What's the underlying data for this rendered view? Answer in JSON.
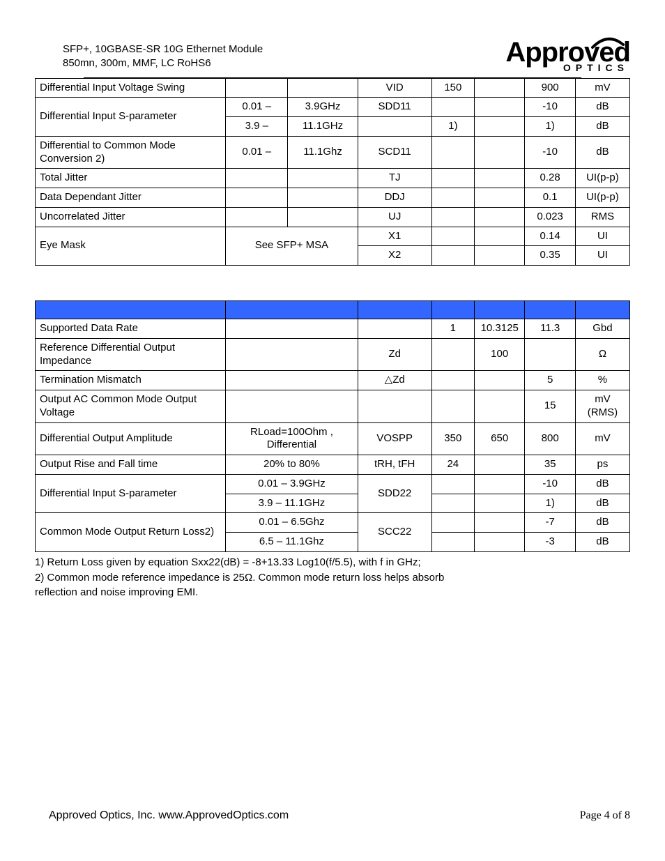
{
  "header": {
    "line1": "SFP+, 10GBASE-SR 10G Ethernet Module",
    "line2": "850mn, 300m, MMF, LC RoHS6"
  },
  "logo": {
    "top": "Approved",
    "bottom": "OPTICS"
  },
  "table1": [
    {
      "param": "Differential Input Voltage Swing",
      "rowspan_param": 1,
      "cond1": "",
      "cond2": "",
      "sym": "VID",
      "min": "150",
      "typ": "",
      "max": "900",
      "unit": "mV"
    },
    {
      "param": "Differential Input S-parameter",
      "rowspan_param": 2,
      "cond1": "0.01 –",
      "cond2": "3.9GHz",
      "sym": "SDD11",
      "min": "",
      "typ": "",
      "max": "-10",
      "unit": "dB"
    },
    {
      "param": null,
      "cond1": "3.9 –",
      "cond2": "11.1GHz",
      "sym": "",
      "min": "1)",
      "typ": "",
      "max": "1)",
      "unit": "dB"
    },
    {
      "param": "Differential to Common Mode Conversion 2)",
      "rowspan_param": 1,
      "cond1": "0.01 –",
      "cond2": "11.1Ghz",
      "sym": "SCD11",
      "min": "",
      "typ": "",
      "max": "-10",
      "unit": "dB"
    },
    {
      "param": "Total Jitter",
      "rowspan_param": 1,
      "cond1": "",
      "cond2": "",
      "sym": "TJ",
      "min": "",
      "typ": "",
      "max": "0.28",
      "unit": "UI(p-p)"
    },
    {
      "param": "Data Dependant Jitter",
      "rowspan_param": 1,
      "cond1": "",
      "cond2": "",
      "sym": "DDJ",
      "min": "",
      "typ": "",
      "max": "0.1",
      "unit": "UI(p-p)"
    },
    {
      "param": "Uncorrelated Jitter",
      "rowspan_param": 1,
      "cond1": "",
      "cond2": "",
      "sym": "UJ",
      "min": "",
      "typ": "",
      "max": "0.023",
      "unit": "RMS"
    },
    {
      "param": "Eye Mask",
      "rowspan_param": 2,
      "cond_merged": "See SFP+ MSA",
      "cond_merged_rowspan": 2,
      "sym": "X1",
      "min": "",
      "typ": "",
      "max": "0.14",
      "unit": "UI"
    },
    {
      "param": null,
      "sym": "X2",
      "min": "",
      "typ": "",
      "max": "0.35",
      "unit": "UI"
    }
  ],
  "table2": [
    {
      "param": "Supported Data Rate",
      "cond": "",
      "sym": "",
      "min": "1",
      "typ": "10.3125",
      "max": "11.3",
      "unit": "Gbd"
    },
    {
      "param": "Reference Differential Output Impedance",
      "cond": "",
      "sym": "Zd",
      "min": "",
      "typ": "100",
      "max": "",
      "unit": "Ω"
    },
    {
      "param": "Termination Mismatch",
      "cond": "",
      "sym": "△Zd",
      "min": "",
      "typ": "",
      "max": "5",
      "unit": "%"
    },
    {
      "param": "Output AC Common Mode Output Voltage",
      "cond": "",
      "sym": "",
      "min": "",
      "typ": "",
      "max": "15",
      "unit": "mV (RMS)"
    },
    {
      "param": "Differential Output Amplitude",
      "cond": "RLoad=100Ohm , Differential",
      "sym": "VOSPP",
      "min": "350",
      "typ": "650",
      "max": "800",
      "unit": "mV"
    },
    {
      "param": "Output Rise and Fall time",
      "cond": "20% to 80%",
      "sym": "tRH, tFH",
      "min": "24",
      "typ": "",
      "max": "35",
      "unit": "ps"
    },
    {
      "param": "Differential Input S-parameter",
      "rowspan_param": 2,
      "cond": "0.01 – 3.9GHz",
      "sym": "SDD22",
      "sym_rowspan": 2,
      "min": "",
      "typ": "",
      "max": "-10",
      "unit": "dB"
    },
    {
      "param": null,
      "cond": "3.9 – 11.1GHz",
      "min": "",
      "typ": "",
      "max": "1)",
      "unit": "dB"
    },
    {
      "param": "Common Mode Output Return Loss2)",
      "rowspan_param": 2,
      "cond": "0.01 – 6.5Ghz",
      "sym": "SCC22",
      "sym_rowspan": 2,
      "min": "",
      "typ": "",
      "max": "-7",
      "unit": "dB"
    },
    {
      "param": null,
      "cond": "6.5 – 11.1Ghz",
      "min": "",
      "typ": "",
      "max": "-3",
      "unit": "dB"
    }
  ],
  "notes": {
    "n1": "1) Return Loss given by equation Sxx22(dB) = -8+13.33 Log10(f/5.5), with f in GHz;",
    "n2": "2) Common mode reference impedance is 25Ω. Common mode return loss helps absorb",
    "n3": "reflection and noise improving EMI."
  },
  "footer": {
    "left": "Approved Optics, Inc.  www.ApprovedOptics.com",
    "right": "Page 4 of 8"
  }
}
